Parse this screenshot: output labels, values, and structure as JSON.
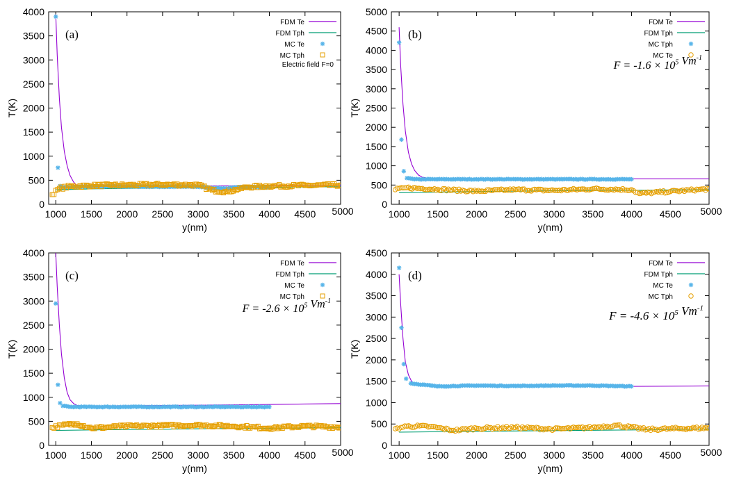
{
  "chart_data": [
    {
      "type": "scatter",
      "panel_label": "(a)",
      "xlabel": "y(nm)",
      "ylabel": "T(K)",
      "xlim": [
        900,
        5000
      ],
      "ylim": [
        0,
        4000
      ],
      "xticks": [
        1000,
        1500,
        2000,
        2500,
        3000,
        3500,
        4000,
        4500,
        5000
      ],
      "yticks": [
        0,
        500,
        1000,
        1500,
        2000,
        2500,
        3000,
        3500,
        4000
      ],
      "annotation": "Electric field F=0",
      "legend_placement": "top-right",
      "series": [
        {
          "name": "FDM  Te",
          "style": "line",
          "color": "#9400d3",
          "x": [
            1000,
            1020,
            1050,
            1080,
            1120,
            1160,
            1200,
            1250,
            1300,
            1400,
            1600,
            2000,
            3000,
            4000,
            5000
          ],
          "y": [
            3950,
            3100,
            2200,
            1600,
            1100,
            800,
            600,
            460,
            390,
            370,
            370,
            375,
            380,
            385,
            390
          ]
        },
        {
          "name": "FDM  Tph",
          "style": "line",
          "color": "#009e73",
          "x": [
            1000,
            1500,
            2000,
            3000,
            4000,
            5000
          ],
          "y": [
            300,
            320,
            330,
            345,
            355,
            365
          ]
        },
        {
          "name": "MC Te",
          "style": "points",
          "marker": "asterisk",
          "color": "#56b4e9",
          "x": [
            1000,
            1030,
            1060,
            1100,
            1200,
            1500,
            2000,
            2500,
            3000,
            3200,
            3400,
            3600,
            3800,
            4000
          ],
          "y": [
            3900,
            760,
            380,
            360,
            360,
            370,
            370,
            365,
            365,
            340,
            330,
            360,
            360,
            350
          ]
        },
        {
          "name": "MC Tph",
          "style": "points",
          "marker": "square",
          "color": "#e69f00",
          "x": [
            950,
            1050,
            1200,
            1500,
            2000,
            2500,
            3000,
            3200,
            3400,
            3700,
            4000,
            4500,
            5000
          ],
          "y": [
            200,
            330,
            370,
            390,
            400,
            410,
            400,
            290,
            260,
            360,
            380,
            390,
            400
          ]
        }
      ]
    },
    {
      "type": "scatter",
      "panel_label": "(b)",
      "xlabel": "y(nm)",
      "ylabel": "T(K)",
      "xlim": [
        900,
        5000
      ],
      "ylim": [
        0,
        5000
      ],
      "xticks": [
        1000,
        1500,
        2000,
        2500,
        3000,
        3500,
        4000,
        4500,
        5000
      ],
      "yticks": [
        0,
        500,
        1000,
        1500,
        2000,
        2500,
        3000,
        3500,
        4000,
        4500,
        5000
      ],
      "annotation": "F = -1.6 × 10^5 Vm^-1",
      "legend_placement": "top-right",
      "series": [
        {
          "name": "FDM   Te",
          "style": "line",
          "color": "#9400d3",
          "x": [
            1000,
            1020,
            1050,
            1080,
            1120,
            1160,
            1200,
            1250,
            1300,
            1400,
            1600,
            2000,
            3000,
            4000,
            5000
          ],
          "y": [
            4600,
            3600,
            2600,
            1900,
            1350,
            1050,
            880,
            760,
            700,
            670,
            660,
            660,
            660,
            660,
            660
          ]
        },
        {
          "name": "FDM  Tph",
          "style": "line",
          "color": "#009e73",
          "x": [
            1000,
            1500,
            2000,
            3000,
            4000,
            5000
          ],
          "y": [
            300,
            315,
            330,
            350,
            365,
            380
          ]
        },
        {
          "name": "MC Tph",
          "style": "points",
          "marker": "asterisk",
          "color": "#56b4e9",
          "x": [
            1000,
            1030,
            1060,
            1100,
            1200,
            1500,
            2000,
            2500,
            3000,
            3500,
            4000
          ],
          "y": [
            4200,
            1680,
            860,
            680,
            650,
            650,
            650,
            650,
            650,
            650,
            650
          ]
        },
        {
          "name": "MC Te",
          "style": "points",
          "marker": "circle",
          "color": "#e69f00",
          "x": [
            950,
            1100,
            1500,
            2000,
            2500,
            3000,
            3500,
            4000,
            4100,
            4500,
            5000
          ],
          "y": [
            380,
            430,
            390,
            340,
            380,
            360,
            400,
            380,
            280,
            330,
            400
          ]
        }
      ]
    },
    {
      "type": "scatter",
      "panel_label": "(c)",
      "xlabel": "y(nm)",
      "ylabel": "T(K)",
      "xlim": [
        900,
        5000
      ],
      "ylim": [
        0,
        4000
      ],
      "xticks": [
        1000,
        1500,
        2000,
        2500,
        3000,
        3500,
        4000,
        4500,
        5000
      ],
      "yticks": [
        0,
        500,
        1000,
        1500,
        2000,
        2500,
        3000,
        3500,
        4000
      ],
      "annotation": "F = -2.6 × 10^5 Vm^-1",
      "legend_placement": "top-right",
      "series": [
        {
          "name": "FDM  Te",
          "style": "line",
          "color": "#9400d3",
          "x": [
            1000,
            1020,
            1050,
            1080,
            1120,
            1160,
            1200,
            1250,
            1300,
            1400,
            1600,
            2000,
            3000,
            4000,
            5000
          ],
          "y": [
            4000,
            3300,
            2500,
            1900,
            1400,
            1100,
            950,
            870,
            830,
            820,
            820,
            825,
            835,
            850,
            870
          ]
        },
        {
          "name": "FDM  Tph",
          "style": "line",
          "color": "#009e73",
          "x": [
            1000,
            1500,
            2000,
            3000,
            4000,
            5000
          ],
          "y": [
            310,
            320,
            330,
            345,
            355,
            370
          ]
        },
        {
          "name": "MC Te",
          "style": "points",
          "marker": "asterisk",
          "color": "#56b4e9",
          "x": [
            1000,
            1030,
            1060,
            1100,
            1200,
            1500,
            2000,
            2500,
            3000,
            3500,
            4000
          ],
          "y": [
            2950,
            1260,
            880,
            820,
            800,
            800,
            800,
            800,
            800,
            800,
            800
          ]
        },
        {
          "name": "MC Tph",
          "style": "points",
          "marker": "square",
          "color": "#e69f00",
          "x": [
            950,
            1100,
            1300,
            1500,
            2000,
            2500,
            3000,
            3500,
            4000,
            4500,
            5000
          ],
          "y": [
            370,
            420,
            450,
            360,
            400,
            410,
            420,
            400,
            360,
            400,
            380
          ]
        }
      ]
    },
    {
      "type": "scatter",
      "panel_label": "(d)",
      "xlabel": "y(nm)",
      "ylabel": "T(K)",
      "xlim": [
        900,
        5000
      ],
      "ylim": [
        0,
        4500
      ],
      "xticks": [
        1000,
        1500,
        2000,
        2500,
        3000,
        3500,
        4000,
        4500,
        5000
      ],
      "yticks": [
        0,
        500,
        1000,
        1500,
        2000,
        2500,
        3000,
        3500,
        4000,
        4500
      ],
      "annotation": "F = -4.6 × 10^5 Vm^-1",
      "legend_placement": "top-right",
      "series": [
        {
          "name": "FDM   Te",
          "style": "line",
          "color": "#9400d3",
          "x": [
            1000,
            1020,
            1050,
            1080,
            1120,
            1160,
            1200,
            1300,
            1400,
            1600,
            2000,
            3000,
            4000,
            5000
          ],
          "y": [
            4000,
            3300,
            2500,
            1950,
            1650,
            1500,
            1440,
            1400,
            1390,
            1380,
            1380,
            1380,
            1380,
            1390
          ]
        },
        {
          "name": "FDM Tph",
          "style": "line",
          "color": "#009e73",
          "x": [
            1000,
            1500,
            2000,
            3000,
            4000,
            5000
          ],
          "y": [
            310,
            320,
            330,
            345,
            360,
            380
          ]
        },
        {
          "name": "MC Te",
          "style": "points",
          "marker": "asterisk",
          "color": "#56b4e9",
          "x": [
            1000,
            1030,
            1060,
            1090,
            1150,
            1300,
            1500,
            2000,
            2500,
            3000,
            3500,
            4000
          ],
          "y": [
            4150,
            2750,
            1900,
            1560,
            1450,
            1420,
            1380,
            1400,
            1390,
            1400,
            1400,
            1380
          ]
        },
        {
          "name": "MC Tph",
          "style": "points",
          "marker": "circle",
          "color": "#e69f00",
          "x": [
            950,
            1100,
            1400,
            1700,
            2000,
            2500,
            3000,
            3500,
            3800,
            4200,
            4500,
            5000
          ],
          "y": [
            390,
            450,
            440,
            350,
            400,
            420,
            380,
            420,
            470,
            370,
            390,
            410
          ]
        }
      ]
    }
  ]
}
